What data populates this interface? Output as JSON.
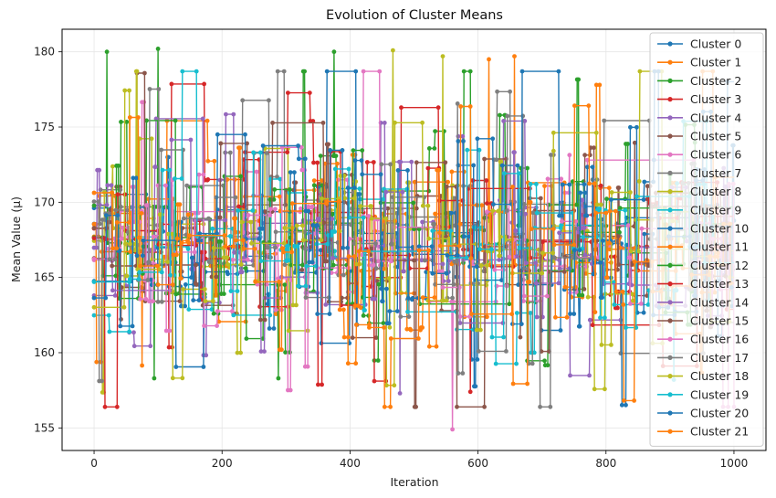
{
  "chart_data": {
    "type": "line",
    "title": "Evolution of Cluster Means",
    "xlabel": "Iteration",
    "ylabel": "Mean Value (µ)",
    "xlim": [
      -50,
      1050
    ],
    "ylim": [
      153.5,
      181.5
    ],
    "xticks": [
      0,
      200,
      400,
      600,
      800,
      1000
    ],
    "yticks": [
      155,
      160,
      165,
      170,
      175,
      180
    ],
    "grid": true,
    "legend_position": "top-right",
    "markers": true,
    "approx_center": 167.2,
    "approx_spread": 2.6,
    "approx_min": 154.9,
    "approx_max": 180.2,
    "iterations": 1000,
    "series": [
      {
        "name": "Cluster 0",
        "color": "#1f77b4"
      },
      {
        "name": "Cluster 1",
        "color": "#ff7f0e"
      },
      {
        "name": "Cluster 2",
        "color": "#2ca02c"
      },
      {
        "name": "Cluster 3",
        "color": "#d62728"
      },
      {
        "name": "Cluster 4",
        "color": "#9467bd"
      },
      {
        "name": "Cluster 5",
        "color": "#8c564b"
      },
      {
        "name": "Cluster 6",
        "color": "#e377c2"
      },
      {
        "name": "Cluster 7",
        "color": "#7f7f7f"
      },
      {
        "name": "Cluster 8",
        "color": "#bcbd22"
      },
      {
        "name": "Cluster 9",
        "color": "#17becf"
      },
      {
        "name": "Cluster 10",
        "color": "#1f77b4"
      },
      {
        "name": "Cluster 11",
        "color": "#ff7f0e"
      },
      {
        "name": "Cluster 12",
        "color": "#2ca02c"
      },
      {
        "name": "Cluster 13",
        "color": "#d62728"
      },
      {
        "name": "Cluster 14",
        "color": "#9467bd"
      },
      {
        "name": "Cluster 15",
        "color": "#8c564b"
      },
      {
        "name": "Cluster 16",
        "color": "#e377c2"
      },
      {
        "name": "Cluster 17",
        "color": "#7f7f7f"
      },
      {
        "name": "Cluster 18",
        "color": "#bcbd22"
      },
      {
        "name": "Cluster 19",
        "color": "#17becf"
      },
      {
        "name": "Cluster 20",
        "color": "#1f77b4"
      },
      {
        "name": "Cluster 21",
        "color": "#ff7f0e"
      }
    ],
    "spikes": [
      {
        "x": 20,
        "y": 180.0,
        "series": "Cluster 2"
      },
      {
        "x": 100,
        "y": 180.2,
        "series": "Cluster 2"
      },
      {
        "x": 375,
        "y": 180.0,
        "series": "Cluster 2"
      },
      {
        "x": 467,
        "y": 180.1,
        "series": "Cluster 8"
      },
      {
        "x": 545,
        "y": 179.7,
        "series": "Cluster 8"
      },
      {
        "x": 617,
        "y": 179.5,
        "series": "Cluster 1"
      },
      {
        "x": 657,
        "y": 179.7,
        "series": "Cluster 1"
      },
      {
        "x": 560,
        "y": 154.9,
        "series": "Cluster 6"
      },
      {
        "x": 478,
        "y": 157.3,
        "series": "Cluster 4"
      },
      {
        "x": 588,
        "y": 157.4,
        "series": "Cluster 3"
      },
      {
        "x": 906,
        "y": 158.2,
        "series": "Cluster 9"
      },
      {
        "x": 94,
        "y": 158.3,
        "series": "Cluster 2"
      },
      {
        "x": 288,
        "y": 158.3,
        "series": "Cluster 2"
      }
    ]
  }
}
